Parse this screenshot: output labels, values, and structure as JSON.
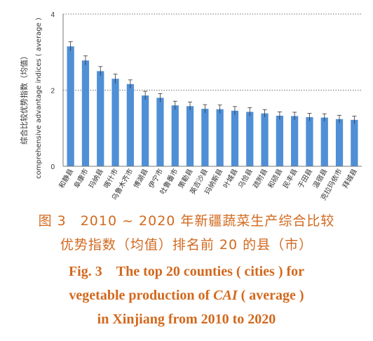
{
  "chart_data": {
    "type": "bar",
    "ylabel_cn": "综合比较优势指数（均值）",
    "ylabel_en": "comprehensive advantage indices ( average )",
    "ylim": [
      0,
      4
    ],
    "yticks": [
      "0",
      "2",
      "4"
    ],
    "grid": "dotted horizontal at 2 and 4",
    "bar_color": "#4f8fd6",
    "categories": [
      "和静县",
      "阜康市",
      "玛纳县",
      "喀什市",
      "乌鲁木齐市",
      "博湖县",
      "伊宁市",
      "吐鲁番市",
      "策勒县",
      "英吉沙县",
      "玛纳斯县",
      "叶城县",
      "乌恰县",
      "疏附县",
      "和硕县",
      "民丰县",
      "于田县",
      "温宿县",
      "克拉玛依市",
      "拜城县"
    ],
    "values": [
      3.15,
      2.78,
      2.5,
      2.3,
      2.16,
      1.86,
      1.8,
      1.6,
      1.58,
      1.51,
      1.5,
      1.46,
      1.43,
      1.39,
      1.33,
      1.32,
      1.29,
      1.28,
      1.24,
      1.22
    ],
    "errors": [
      0.12,
      0.12,
      0.12,
      0.12,
      0.11,
      0.11,
      0.11,
      0.11,
      0.11,
      0.11,
      0.11,
      0.11,
      0.11,
      0.1,
      0.1,
      0.1,
      0.1,
      0.1,
      0.1,
      0.1
    ]
  },
  "caption": {
    "cn_line1": "图 3　2010 ~ 2020 年新疆蔬菜生产综合比较",
    "cn_line2": "优势指数（均值）排名前 20 的县（市）",
    "en_line1": "Fig. 3　The top 20 counties ( cities ) for",
    "en_line2_pre": "vegetable production of ",
    "en_line2_em": "CAI",
    "en_line2_post": " ( average )",
    "en_line3": "in Xinjiang from 2010 to 2020"
  }
}
